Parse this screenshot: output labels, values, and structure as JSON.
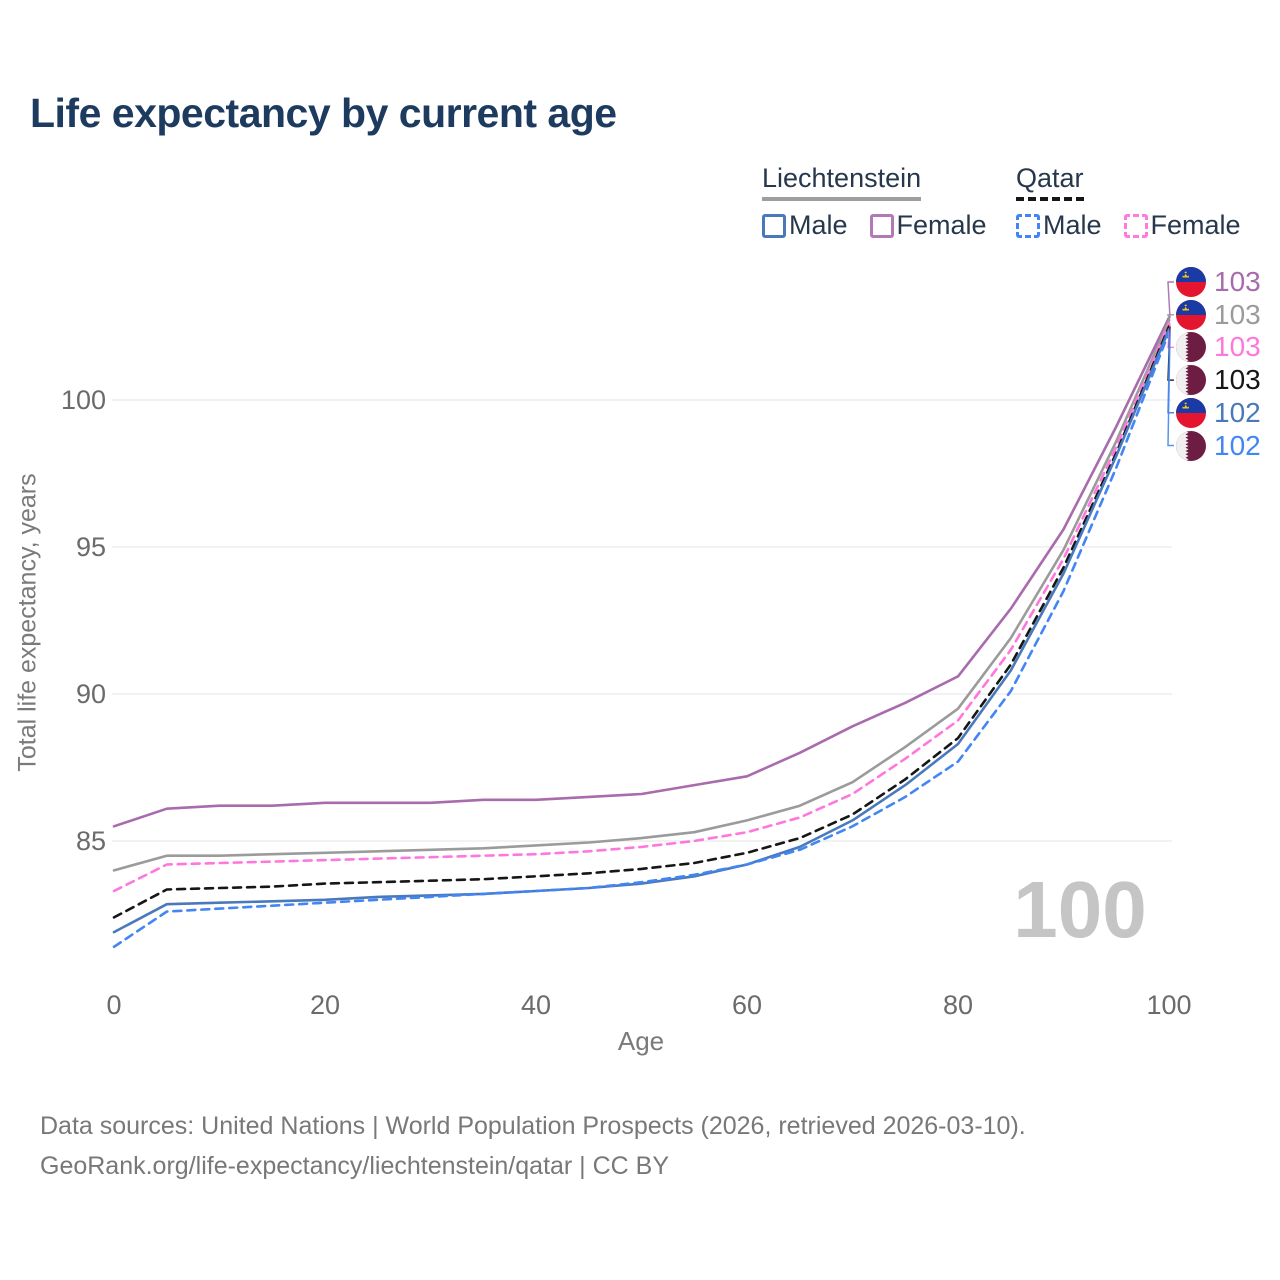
{
  "title": "Life expectancy by current age",
  "legend": {
    "groups": [
      {
        "label": "Liechtenstein",
        "line_style": "solid",
        "underline_color": "#9e9e9e"
      },
      {
        "label": "Qatar",
        "line_style": "dashed",
        "underline_color": "#161616"
      }
    ],
    "items": [
      {
        "group": "Liechtenstein",
        "label": "Male",
        "color": "#4a79bb",
        "dashed": false
      },
      {
        "group": "Liechtenstein",
        "label": "Female",
        "color": "#b379b6",
        "dashed": false
      },
      {
        "group": "Qatar",
        "label": "Male",
        "color": "#4286f5",
        "dashed": true
      },
      {
        "group": "Qatar",
        "label": "Female",
        "color": "#ff7ade",
        "dashed": true
      }
    ]
  },
  "watermark": "100",
  "footer": {
    "line1": "Data sources: United Nations | World Population Prospects (2026, retrieved 2026-03-10).",
    "line2": "GeoRank.org/life-expectancy/liechtenstein/qatar | CC BY"
  },
  "chart_data": {
    "type": "line",
    "title": "Life expectancy by current age",
    "xlabel": "Age",
    "ylabel": "Total life expectancy, years",
    "x": [
      0,
      5,
      10,
      15,
      20,
      25,
      30,
      35,
      40,
      45,
      50,
      55,
      60,
      65,
      70,
      75,
      80,
      85,
      90,
      95,
      100
    ],
    "xticks": [
      0,
      20,
      40,
      60,
      80,
      100
    ],
    "yticks": [
      85,
      90,
      95,
      100
    ],
    "xlim": [
      0,
      100
    ],
    "ylim": [
      81,
      103.5
    ],
    "grid": "horizontal",
    "legend_position": "top-right",
    "series": [
      {
        "name": "Liechtenstein Female",
        "country": "Liechtenstein",
        "sex": "Female",
        "color": "#a86bad",
        "dashed": false,
        "flag_icon": "liechtenstein-flag",
        "end_label": "103",
        "values": [
          85.5,
          86.1,
          86.2,
          86.2,
          86.3,
          86.3,
          86.3,
          86.4,
          86.4,
          86.5,
          86.6,
          86.9,
          87.2,
          88.0,
          88.9,
          89.7,
          90.6,
          92.9,
          95.6,
          99.1,
          102.8
        ]
      },
      {
        "name": "Liechtenstein Total",
        "country": "Liechtenstein",
        "sex": "Both",
        "color": "#9b9b9b",
        "dashed": false,
        "flag_icon": "liechtenstein-flag",
        "end_label": "103",
        "values": [
          84.0,
          84.5,
          84.5,
          84.55,
          84.6,
          84.65,
          84.7,
          84.75,
          84.85,
          84.95,
          85.1,
          85.3,
          85.7,
          86.2,
          87.0,
          88.2,
          89.5,
          91.9,
          94.9,
          98.6,
          102.7
        ]
      },
      {
        "name": "Qatar Female",
        "country": "Qatar",
        "sex": "Female",
        "color": "#ff77dd",
        "dashed": true,
        "flag_icon": "qatar-flag",
        "end_label": "103",
        "values": [
          83.3,
          84.2,
          84.25,
          84.3,
          84.35,
          84.4,
          84.45,
          84.5,
          84.55,
          84.65,
          84.8,
          85.0,
          85.3,
          85.8,
          86.6,
          87.8,
          89.1,
          91.5,
          94.6,
          98.4,
          102.6
        ]
      },
      {
        "name": "Qatar Total",
        "country": "Qatar",
        "sex": "Both",
        "color": "#161616",
        "dashed": true,
        "flag_icon": "qatar-flag",
        "end_label": "103",
        "values": [
          82.4,
          83.35,
          83.4,
          83.45,
          83.55,
          83.6,
          83.65,
          83.7,
          83.8,
          83.9,
          84.05,
          84.25,
          84.6,
          85.1,
          85.9,
          87.1,
          88.5,
          91.0,
          94.3,
          98.2,
          102.5
        ]
      },
      {
        "name": "Liechtenstein Male",
        "country": "Liechtenstein",
        "sex": "Male",
        "color": "#4a79bb",
        "dashed": false,
        "flag_icon": "liechtenstein-flag",
        "end_label": "102",
        "values": [
          81.9,
          82.85,
          82.9,
          82.95,
          83.0,
          83.1,
          83.15,
          83.2,
          83.3,
          83.4,
          83.55,
          83.8,
          84.2,
          84.8,
          85.7,
          86.9,
          88.3,
          90.8,
          94.1,
          98.1,
          102.4
        ]
      },
      {
        "name": "Qatar Male",
        "country": "Qatar",
        "sex": "Male",
        "color": "#4286f5",
        "dashed": true,
        "flag_icon": "qatar-flag",
        "end_label": "102",
        "values": [
          81.4,
          82.6,
          82.7,
          82.8,
          82.9,
          83.0,
          83.1,
          83.2,
          83.3,
          83.4,
          83.6,
          83.85,
          84.2,
          84.7,
          85.5,
          86.5,
          87.7,
          90.1,
          93.5,
          97.7,
          102.3
        ]
      }
    ],
    "colors": {
      "gridline": "#eaeaea",
      "tick_text": "#6b6b6b",
      "axis_title": "#7a7a7a",
      "title_text": "#1d3a5f",
      "watermark": "#c5c5c5",
      "li_flag_blue": "#1a3aa5",
      "li_flag_red": "#e4162f",
      "li_flag_crown": "#f6c71d",
      "qa_flag_maroon": "#6e1d42",
      "qa_flag_white": "#f1efef"
    }
  }
}
